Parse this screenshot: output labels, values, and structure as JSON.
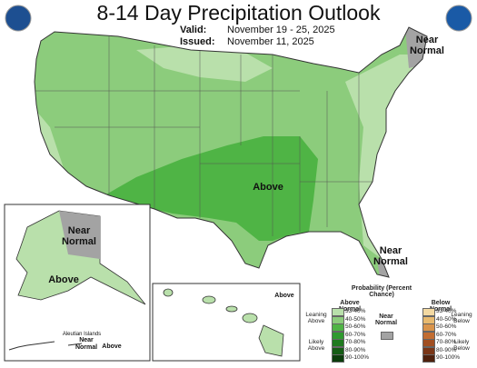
{
  "header": {
    "title": "8-14 Day Precipitation Outlook",
    "valid_label": "Valid:",
    "valid": "November 19 - 25, 2025",
    "issued_label": "Issued:",
    "issued": "November 11, 2025"
  },
  "map_labels": {
    "northeast": "Near Normal",
    "central": "Above",
    "florida": "Near Normal",
    "alaska_north": "Near Normal",
    "alaska_south": "Above",
    "aleutian_title": "Aleutian Islands",
    "aleutian_near": "Near Normal",
    "aleutian_above": "Above",
    "hawaii": "Above"
  },
  "legend": {
    "title": "Probability (Percent Chance)",
    "above_title": "Above Normal",
    "below_title": "Below Normal",
    "near_title": "Near Normal",
    "near_color": "#a3a3a3",
    "leaning_above": "Leaning Above",
    "likely_above": "Likely Above",
    "leaning_below": "Leaning Below",
    "likely_below": "Likely Below",
    "above": [
      {
        "label": "33-40%",
        "color": "#b9e0ab"
      },
      {
        "label": "40-50%",
        "color": "#8ccc7c"
      },
      {
        "label": "50-60%",
        "color": "#4fb445"
      },
      {
        "label": "60-70%",
        "color": "#2f9a2f"
      },
      {
        "label": "70-80%",
        "color": "#1f7a1f"
      },
      {
        "label": "80-90%",
        "color": "#145c14"
      },
      {
        "label": "90-100%",
        "color": "#0b3d0b"
      }
    ],
    "below": [
      {
        "label": "33-40%",
        "color": "#f3d9a2"
      },
      {
        "label": "40-50%",
        "color": "#e8ba6f"
      },
      {
        "label": "50-60%",
        "color": "#d9944b"
      },
      {
        "label": "60-70%",
        "color": "#c26d31"
      },
      {
        "label": "70-80%",
        "color": "#a14f22"
      },
      {
        "label": "80-90%",
        "color": "#7a3617"
      },
      {
        "label": "90-100%",
        "color": "#4f210d"
      }
    ]
  }
}
